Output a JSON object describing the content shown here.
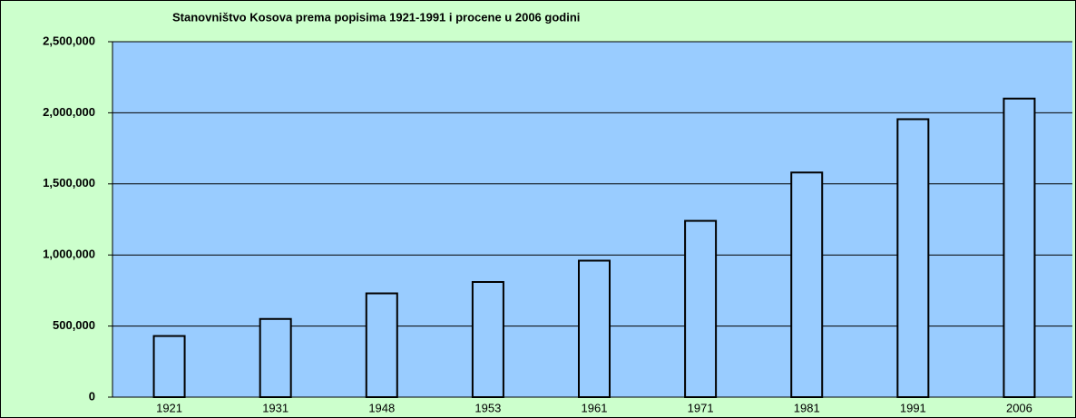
{
  "chart_data": {
    "type": "bar",
    "title": "Stanovništvo Kosova prema popisima 1921-1991 i procene u 2006 godini",
    "categories": [
      "1921",
      "1931",
      "1948",
      "1953",
      "1961",
      "1971",
      "1981",
      "1991",
      "2006"
    ],
    "values": [
      430000,
      550000,
      730000,
      810000,
      960000,
      1240000,
      1580000,
      1955000,
      2100000
    ],
    "color": "#99ccff",
    "ylim": [
      0,
      2500000
    ],
    "yticks": [
      0,
      {
        "value": 500000,
        "label": "500,000"
      },
      {
        "value": 1000000,
        "label": "1,000,000"
      },
      {
        "value": 1500000,
        "label": "1,500,000"
      },
      {
        "value": 2000000,
        "label": "2,000,000"
      },
      {
        "value": 2500000,
        "label": "2,500,000"
      }
    ],
    "grid": true
  }
}
